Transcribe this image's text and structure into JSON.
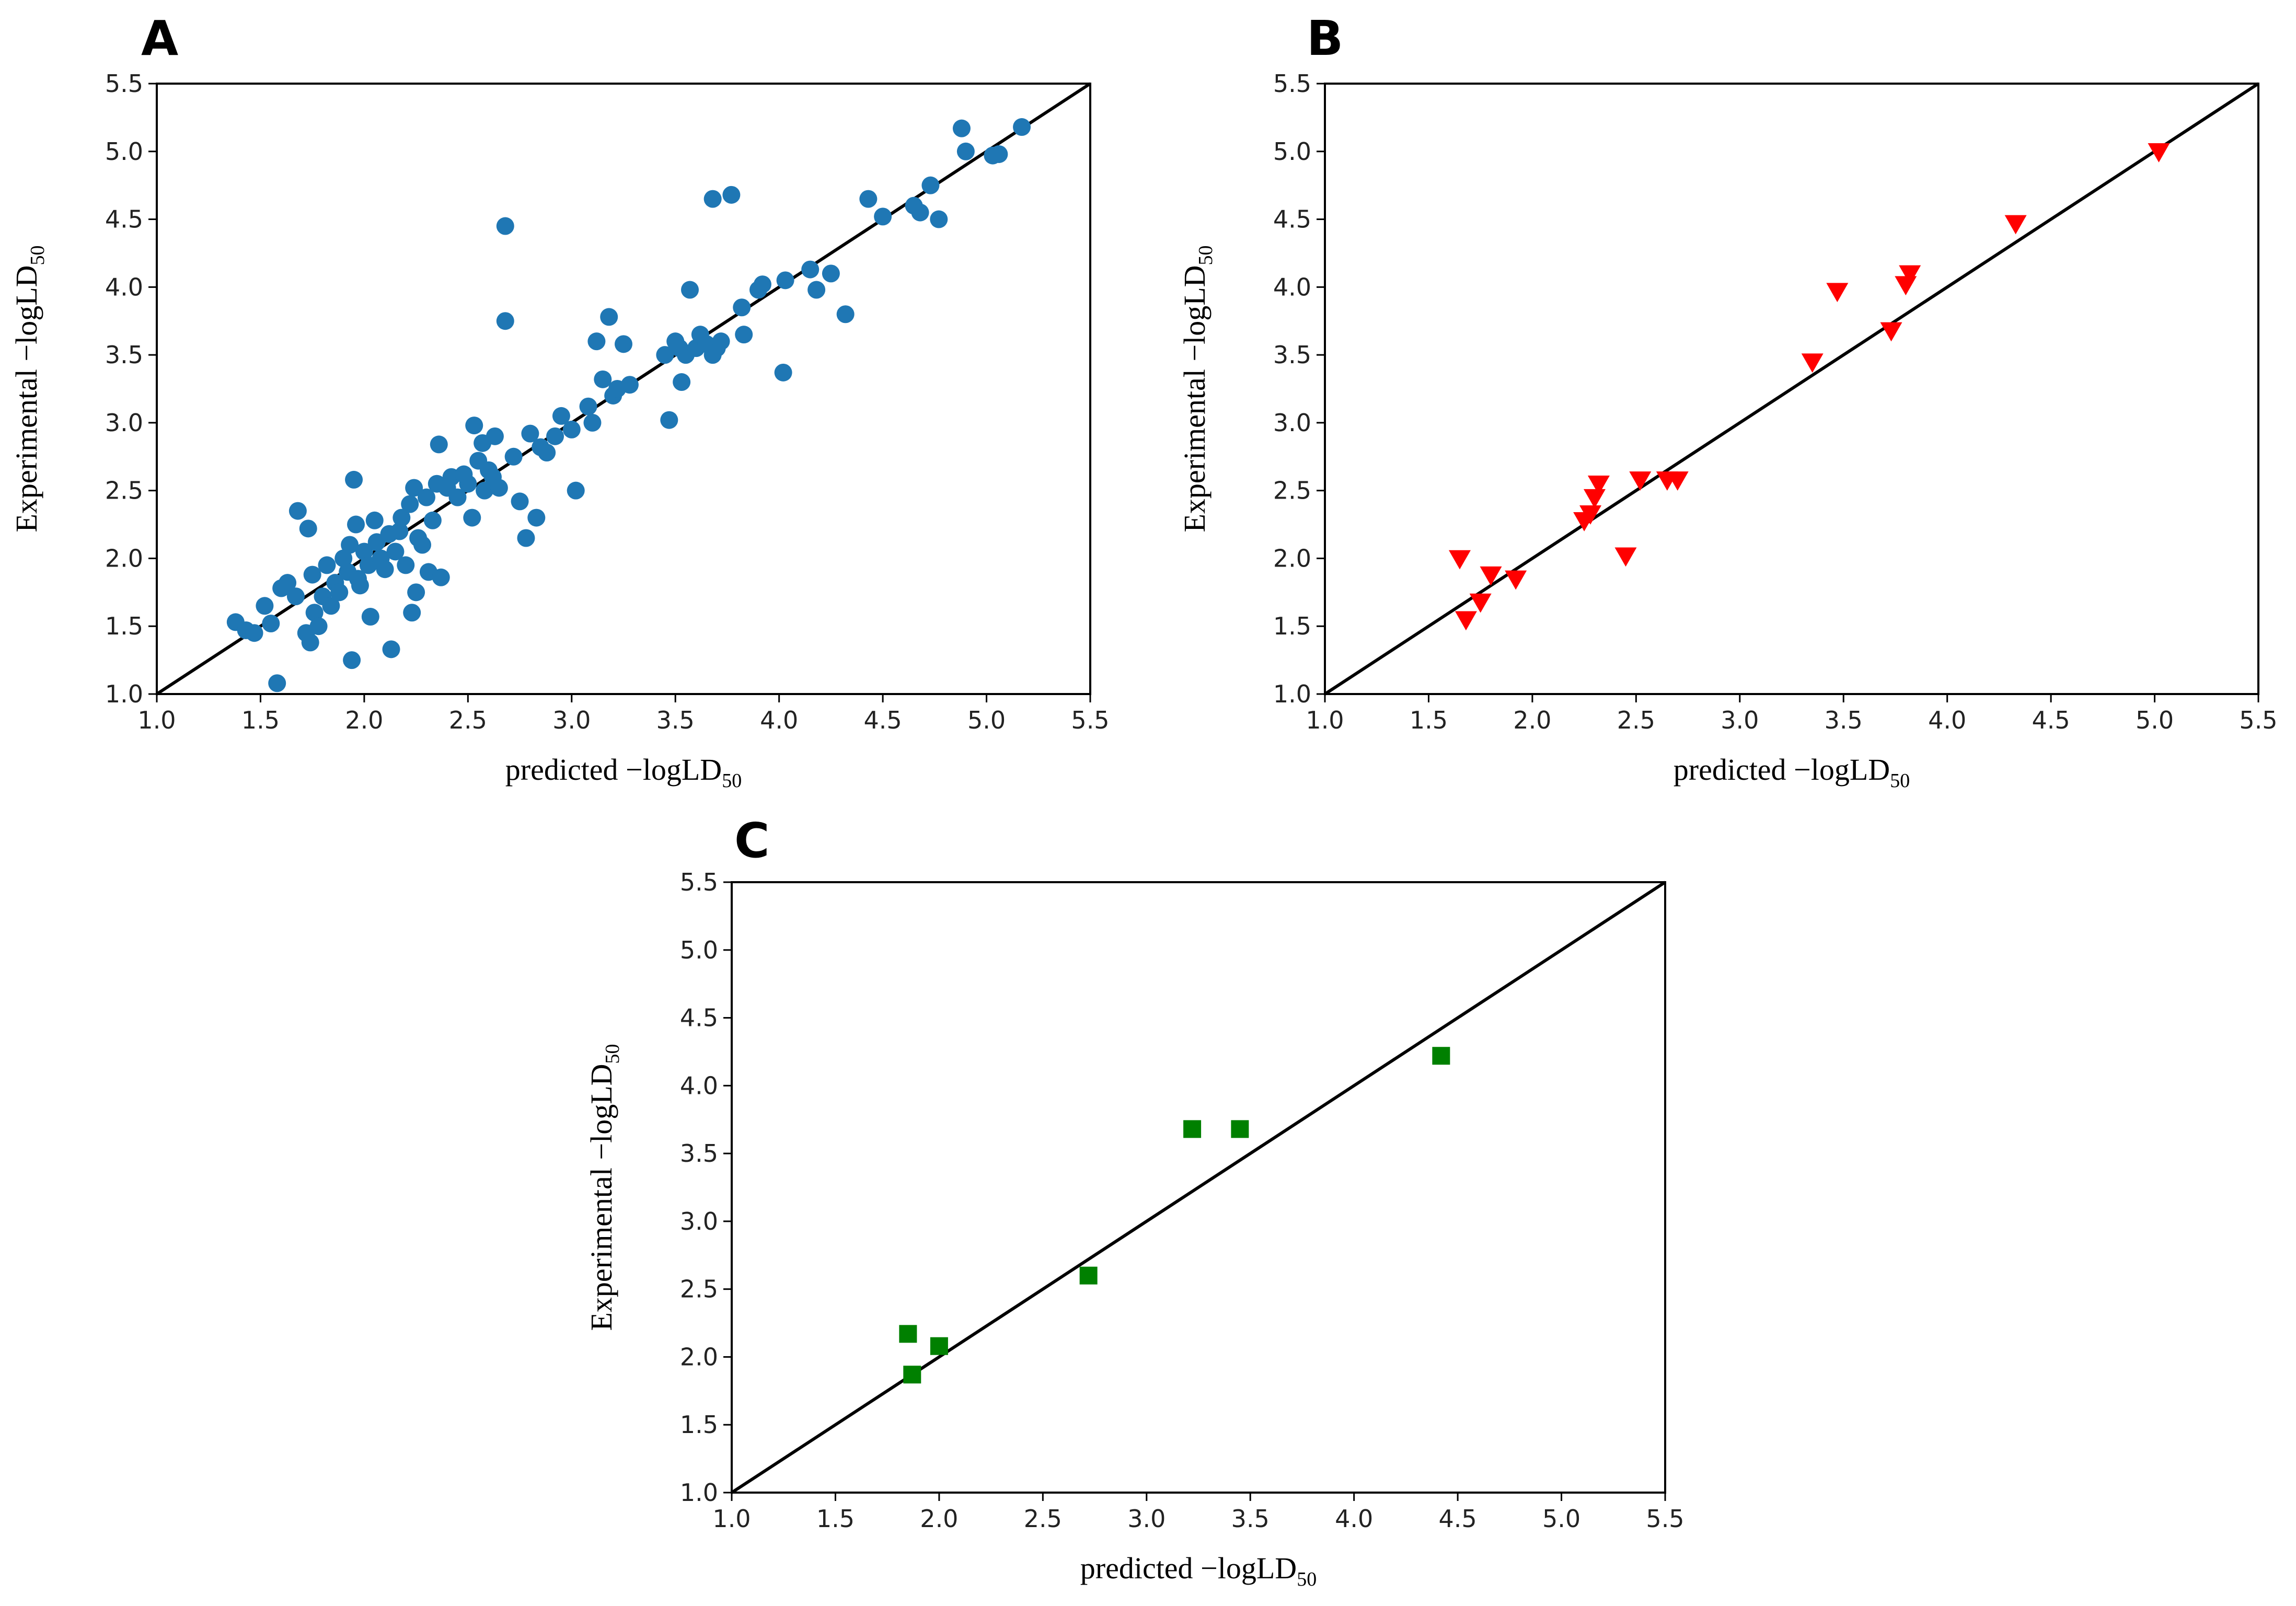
{
  "chart_data": [
    {
      "panel": "A",
      "type": "scatter",
      "xlabel": "predicted −logLD",
      "xlabel_sub": "50",
      "ylabel": "Experimental  −logLD",
      "ylabel_sub": "50",
      "xlim": [
        1.0,
        5.5
      ],
      "ylim": [
        1.0,
        5.5
      ],
      "ticks": [
        "1.0",
        "1.5",
        "2.0",
        "2.5",
        "3.0",
        "3.5",
        "4.0",
        "4.5",
        "5.0",
        "5.5"
      ],
      "reference_line": "y = x",
      "marker": "circle",
      "color": "#1f77b4",
      "points": [
        [
          1.38,
          1.53
        ],
        [
          1.43,
          1.47
        ],
        [
          1.47,
          1.45
        ],
        [
          1.52,
          1.65
        ],
        [
          1.55,
          1.52
        ],
        [
          1.58,
          1.08
        ],
        [
          1.6,
          1.78
        ],
        [
          1.63,
          1.82
        ],
        [
          1.67,
          1.72
        ],
        [
          1.68,
          2.35
        ],
        [
          1.72,
          1.45
        ],
        [
          1.73,
          2.22
        ],
        [
          1.74,
          1.38
        ],
        [
          1.75,
          1.88
        ],
        [
          1.76,
          1.6
        ],
        [
          1.78,
          1.5
        ],
        [
          1.8,
          1.72
        ],
        [
          1.82,
          1.95
        ],
        [
          1.84,
          1.65
        ],
        [
          1.86,
          1.82
        ],
        [
          1.88,
          1.75
        ],
        [
          1.9,
          2.0
        ],
        [
          1.92,
          1.9
        ],
        [
          1.93,
          2.1
        ],
        [
          1.94,
          1.25
        ],
        [
          1.95,
          2.58
        ],
        [
          1.96,
          2.25
        ],
        [
          1.97,
          1.85
        ],
        [
          1.98,
          1.8
        ],
        [
          2.0,
          2.05
        ],
        [
          2.02,
          1.95
        ],
        [
          2.03,
          1.57
        ],
        [
          2.05,
          2.28
        ],
        [
          2.06,
          2.12
        ],
        [
          2.08,
          2.0
        ],
        [
          2.1,
          1.92
        ],
        [
          2.12,
          2.18
        ],
        [
          2.13,
          1.33
        ],
        [
          2.15,
          2.05
        ],
        [
          2.17,
          2.2
        ],
        [
          2.18,
          2.3
        ],
        [
          2.2,
          1.95
        ],
        [
          2.22,
          2.4
        ],
        [
          2.23,
          1.6
        ],
        [
          2.24,
          2.52
        ],
        [
          2.25,
          1.75
        ],
        [
          2.26,
          2.15
        ],
        [
          2.28,
          2.1
        ],
        [
          2.3,
          2.45
        ],
        [
          2.31,
          1.9
        ],
        [
          2.33,
          2.28
        ],
        [
          2.35,
          2.55
        ],
        [
          2.36,
          2.84
        ],
        [
          2.37,
          1.86
        ],
        [
          2.4,
          2.52
        ],
        [
          2.42,
          2.6
        ],
        [
          2.45,
          2.45
        ],
        [
          2.48,
          2.62
        ],
        [
          2.5,
          2.55
        ],
        [
          2.52,
          2.3
        ],
        [
          2.53,
          2.98
        ],
        [
          2.55,
          2.72
        ],
        [
          2.57,
          2.85
        ],
        [
          2.58,
          2.5
        ],
        [
          2.6,
          2.65
        ],
        [
          2.62,
          2.6
        ],
        [
          2.63,
          2.9
        ],
        [
          2.65,
          2.52
        ],
        [
          2.68,
          4.45
        ],
        [
          2.68,
          3.75
        ],
        [
          2.72,
          2.75
        ],
        [
          2.75,
          2.42
        ],
        [
          2.78,
          2.15
        ],
        [
          2.8,
          2.92
        ],
        [
          2.83,
          2.3
        ],
        [
          2.85,
          2.82
        ],
        [
          2.88,
          2.78
        ],
        [
          2.92,
          2.9
        ],
        [
          2.95,
          3.05
        ],
        [
          3.0,
          2.95
        ],
        [
          3.02,
          2.5
        ],
        [
          3.08,
          3.12
        ],
        [
          3.1,
          3.0
        ],
        [
          3.12,
          3.6
        ],
        [
          3.15,
          3.32
        ],
        [
          3.18,
          3.78
        ],
        [
          3.2,
          3.2
        ],
        [
          3.22,
          3.25
        ],
        [
          3.25,
          3.58
        ],
        [
          3.28,
          3.28
        ],
        [
          3.45,
          3.5
        ],
        [
          3.47,
          3.02
        ],
        [
          3.5,
          3.6
        ],
        [
          3.52,
          3.55
        ],
        [
          3.53,
          3.3
        ],
        [
          3.55,
          3.5
        ],
        [
          3.57,
          3.98
        ],
        [
          3.6,
          3.55
        ],
        [
          3.62,
          3.65
        ],
        [
          3.65,
          3.58
        ],
        [
          3.68,
          3.5
        ],
        [
          3.68,
          4.65
        ],
        [
          3.7,
          3.55
        ],
        [
          3.72,
          3.6
        ],
        [
          3.77,
          4.68
        ],
        [
          3.82,
          3.85
        ],
        [
          3.83,
          3.65
        ],
        [
          3.9,
          3.98
        ],
        [
          3.92,
          4.02
        ],
        [
          4.02,
          3.37
        ],
        [
          4.03,
          4.05
        ],
        [
          4.15,
          4.13
        ],
        [
          4.18,
          3.98
        ],
        [
          4.25,
          4.1
        ],
        [
          4.32,
          3.8
        ],
        [
          4.43,
          4.65
        ],
        [
          4.5,
          4.52
        ],
        [
          4.65,
          4.6
        ],
        [
          4.68,
          4.55
        ],
        [
          4.73,
          4.75
        ],
        [
          4.77,
          4.5
        ],
        [
          4.88,
          5.17
        ],
        [
          4.9,
          5.0
        ],
        [
          5.03,
          4.97
        ],
        [
          5.06,
          4.98
        ],
        [
          5.17,
          5.18
        ]
      ]
    },
    {
      "panel": "B",
      "type": "scatter",
      "xlabel": "predicted −logLD",
      "xlabel_sub": "50",
      "ylabel": "Experimental  −logLD",
      "ylabel_sub": "50",
      "xlim": [
        1.0,
        5.5
      ],
      "ylim": [
        1.0,
        5.5
      ],
      "ticks": [
        "1.0",
        "1.5",
        "2.0",
        "2.5",
        "3.0",
        "3.5",
        "4.0",
        "4.5",
        "5.0",
        "5.5"
      ],
      "reference_line": "y = x",
      "marker": "triangle-down",
      "color": "#ff0000",
      "points": [
        [
          1.65,
          2.0
        ],
        [
          1.68,
          1.55
        ],
        [
          1.75,
          1.68
        ],
        [
          1.8,
          1.88
        ],
        [
          1.92,
          1.85
        ],
        [
          2.25,
          2.28
        ],
        [
          2.28,
          2.33
        ],
        [
          2.3,
          2.45
        ],
        [
          2.32,
          2.55
        ],
        [
          2.45,
          2.02
        ],
        [
          2.52,
          2.58
        ],
        [
          2.65,
          2.58
        ],
        [
          2.7,
          2.58
        ],
        [
          3.35,
          3.45
        ],
        [
          3.47,
          3.97
        ],
        [
          3.73,
          3.68
        ],
        [
          3.8,
          4.02
        ],
        [
          3.82,
          4.1
        ],
        [
          4.33,
          4.47
        ],
        [
          5.02,
          5.0
        ]
      ]
    },
    {
      "panel": "C",
      "type": "scatter",
      "xlabel": "predicted −logLD",
      "xlabel_sub": "50",
      "ylabel": "Experimental  −logLD",
      "ylabel_sub": "50",
      "xlim": [
        1.0,
        5.5
      ],
      "ylim": [
        1.0,
        5.5
      ],
      "ticks": [
        "1.0",
        "1.5",
        "2.0",
        "2.5",
        "3.0",
        "3.5",
        "4.0",
        "4.5",
        "5.0",
        "5.5"
      ],
      "reference_line": "y = x",
      "marker": "square",
      "color": "#008000",
      "points": [
        [
          1.85,
          2.17
        ],
        [
          1.87,
          1.87
        ],
        [
          2.0,
          2.08
        ],
        [
          2.72,
          2.6
        ],
        [
          3.22,
          3.68
        ],
        [
          3.45,
          3.68
        ],
        [
          4.42,
          4.22
        ]
      ]
    }
  ]
}
